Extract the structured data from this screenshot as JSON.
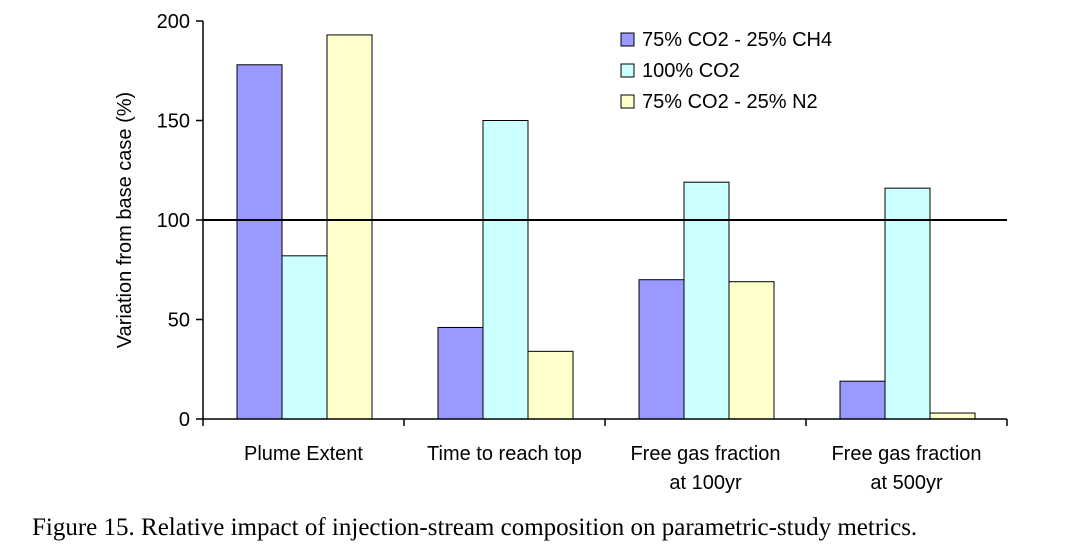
{
  "chart_data": {
    "type": "bar",
    "ylabel": "Variation from base case (%)",
    "ylim": [
      0,
      200
    ],
    "yticks": [
      0,
      50,
      100,
      150,
      200
    ],
    "reference_line": 100,
    "categories": [
      [
        "Plume Extent"
      ],
      [
        "Time to reach top"
      ],
      [
        "Free gas fraction",
        "at 100yr"
      ],
      [
        "Free gas fraction",
        "at 500yr"
      ]
    ],
    "series": [
      {
        "name": "75% CO2 - 25% CH4",
        "color": "#9999ff",
        "values": [
          178,
          46,
          70,
          19
        ]
      },
      {
        "name": "100% CO2",
        "color": "#ccffff",
        "values": [
          82,
          150,
          119,
          116
        ]
      },
      {
        "name": "75% CO2 - 25% N2",
        "color": "#ffffcc",
        "values": [
          193,
          34,
          69,
          3
        ]
      }
    ],
    "legend_position": "top-right"
  },
  "caption": "Figure 15. Relative impact of injection-stream composition on parametric-study metrics."
}
